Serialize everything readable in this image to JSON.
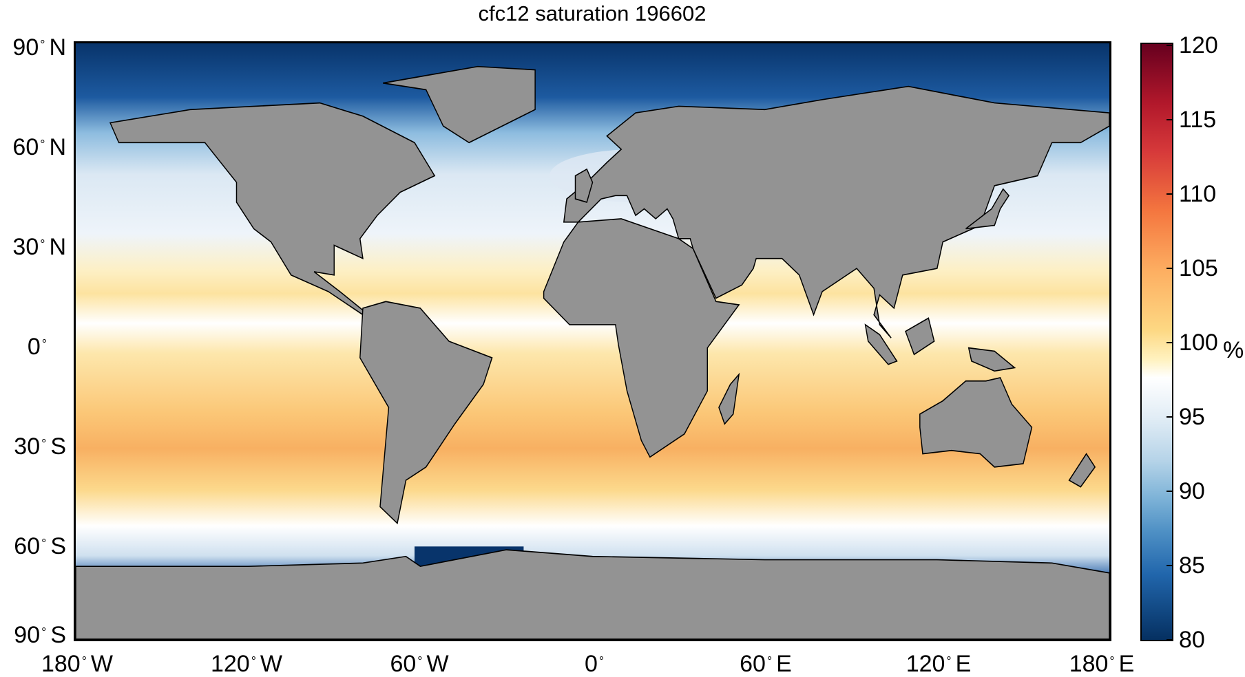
{
  "title": "cfc12 saturation 196602",
  "y_ticks": [
    "90",
    "60",
    "30",
    "0",
    "30",
    "60",
    "90"
  ],
  "y_hemis": [
    "N",
    "N",
    "N",
    "",
    "S",
    "S",
    "S"
  ],
  "x_ticks": [
    "180",
    "120",
    "60",
    "0",
    "60",
    "120",
    "180"
  ],
  "x_hemis": [
    "W",
    "W",
    "W",
    "",
    "E",
    "E",
    "E"
  ],
  "degree_symbol": "°",
  "colorbar": {
    "ticks": [
      "120",
      "115",
      "110",
      "105",
      "100",
      "95",
      "90",
      "85",
      "80"
    ],
    "range": [
      80,
      120
    ],
    "unit": "%",
    "colors": [
      "#67001f",
      "#d6393a",
      "#fdae61",
      "#ffffff",
      "#7fb4d8",
      "#053061"
    ]
  },
  "land_color": "#939393"
}
